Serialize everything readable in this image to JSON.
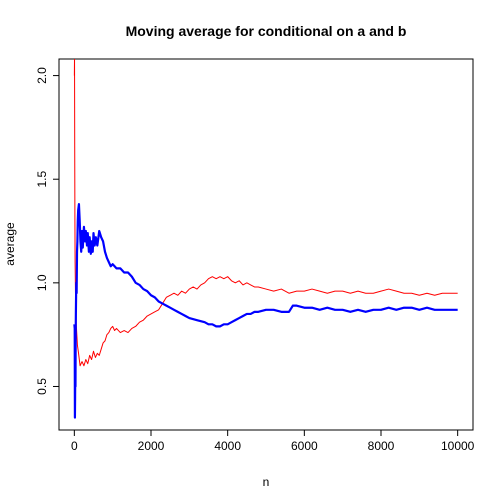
{
  "chart_data": {
    "type": "line",
    "title": "Moving average for conditional on a and b",
    "xlabel": "n",
    "ylabel": "average",
    "xlim": [
      -400,
      10400
    ],
    "ylim": [
      0.29,
      2.08
    ],
    "x_ticks": [
      0,
      2000,
      4000,
      6000,
      8000,
      10000
    ],
    "y_ticks": [
      0.5,
      1.0,
      1.5,
      2.0
    ],
    "x_tick_labels": [
      "0",
      "2000",
      "4000",
      "6000",
      "8000",
      "10000"
    ],
    "y_tick_labels": [
      "0.5",
      "1.0",
      "1.5",
      "2.0"
    ],
    "grid": false,
    "legend": "none",
    "series": [
      {
        "color": "#ff0000",
        "style": "line",
        "points": [
          [
            1,
            2.0
          ],
          [
            5,
            2.1
          ],
          [
            10,
            1.65
          ],
          [
            15,
            1.3
          ],
          [
            20,
            1.1
          ],
          [
            30,
            0.95
          ],
          [
            50,
            0.8
          ],
          [
            80,
            0.7
          ],
          [
            110,
            0.66
          ],
          [
            150,
            0.6
          ],
          [
            200,
            0.62
          ],
          [
            250,
            0.6
          ],
          [
            300,
            0.63
          ],
          [
            350,
            0.61
          ],
          [
            400,
            0.65
          ],
          [
            450,
            0.63
          ],
          [
            500,
            0.67
          ],
          [
            550,
            0.64
          ],
          [
            600,
            0.66
          ],
          [
            650,
            0.65
          ],
          [
            700,
            0.68
          ],
          [
            750,
            0.71
          ],
          [
            800,
            0.72
          ],
          [
            850,
            0.75
          ],
          [
            900,
            0.76
          ],
          [
            950,
            0.78
          ],
          [
            1000,
            0.79
          ],
          [
            1050,
            0.77
          ],
          [
            1100,
            0.78
          ],
          [
            1200,
            0.76
          ],
          [
            1300,
            0.77
          ],
          [
            1400,
            0.76
          ],
          [
            1500,
            0.78
          ],
          [
            1600,
            0.79
          ],
          [
            1700,
            0.81
          ],
          [
            1800,
            0.82
          ],
          [
            1900,
            0.84
          ],
          [
            2000,
            0.85
          ],
          [
            2100,
            0.86
          ],
          [
            2200,
            0.87
          ],
          [
            2300,
            0.9
          ],
          [
            2400,
            0.93
          ],
          [
            2500,
            0.94
          ],
          [
            2600,
            0.95
          ],
          [
            2700,
            0.94
          ],
          [
            2800,
            0.96
          ],
          [
            2900,
            0.95
          ],
          [
            3000,
            0.97
          ],
          [
            3100,
            0.98
          ],
          [
            3200,
            0.97
          ],
          [
            3300,
            0.99
          ],
          [
            3400,
            1.0
          ],
          [
            3500,
            1.02
          ],
          [
            3600,
            1.03
          ],
          [
            3700,
            1.02
          ],
          [
            3800,
            1.03
          ],
          [
            3900,
            1.02
          ],
          [
            4000,
            1.03
          ],
          [
            4100,
            1.01
          ],
          [
            4200,
            1.0
          ],
          [
            4300,
            1.01
          ],
          [
            4400,
            0.99
          ],
          [
            4500,
            1.0
          ],
          [
            4600,
            0.99
          ],
          [
            4700,
            0.98
          ],
          [
            4800,
            0.98
          ],
          [
            5000,
            0.97
          ],
          [
            5200,
            0.96
          ],
          [
            5400,
            0.97
          ],
          [
            5600,
            0.95
          ],
          [
            5800,
            0.96
          ],
          [
            6000,
            0.96
          ],
          [
            6200,
            0.97
          ],
          [
            6400,
            0.96
          ],
          [
            6600,
            0.95
          ],
          [
            6800,
            0.96
          ],
          [
            7000,
            0.96
          ],
          [
            7200,
            0.95
          ],
          [
            7400,
            0.96
          ],
          [
            7600,
            0.95
          ],
          [
            7800,
            0.95
          ],
          [
            8000,
            0.96
          ],
          [
            8200,
            0.97
          ],
          [
            8400,
            0.96
          ],
          [
            8600,
            0.95
          ],
          [
            8800,
            0.95
          ],
          [
            9000,
            0.94
          ],
          [
            9200,
            0.95
          ],
          [
            9400,
            0.94
          ],
          [
            9600,
            0.95
          ],
          [
            9800,
            0.95
          ],
          [
            10000,
            0.95
          ]
        ]
      },
      {
        "color": "#0000ff",
        "style": "thick-line",
        "points": [
          [
            1,
            0.8
          ],
          [
            10,
            0.78
          ],
          [
            15,
            0.35
          ],
          [
            20,
            0.45
          ],
          [
            25,
            0.6
          ],
          [
            30,
            0.5
          ],
          [
            35,
            0.75
          ],
          [
            40,
            0.85
          ],
          [
            50,
            1.0
          ],
          [
            60,
            0.95
          ],
          [
            70,
            1.15
          ],
          [
            80,
            1.2
          ],
          [
            90,
            1.3
          ],
          [
            100,
            1.35
          ],
          [
            120,
            1.38
          ],
          [
            140,
            1.3
          ],
          [
            160,
            1.2
          ],
          [
            180,
            1.15
          ],
          [
            200,
            1.25
          ],
          [
            220,
            1.17
          ],
          [
            250,
            1.27
          ],
          [
            280,
            1.2
          ],
          [
            300,
            1.25
          ],
          [
            330,
            1.18
          ],
          [
            350,
            1.24
          ],
          [
            380,
            1.15
          ],
          [
            400,
            1.22
          ],
          [
            430,
            1.14
          ],
          [
            450,
            1.2
          ],
          [
            480,
            1.15
          ],
          [
            500,
            1.24
          ],
          [
            530,
            1.18
          ],
          [
            560,
            1.22
          ],
          [
            600,
            1.18
          ],
          [
            650,
            1.25
          ],
          [
            700,
            1.22
          ],
          [
            750,
            1.2
          ],
          [
            800,
            1.15
          ],
          [
            850,
            1.12
          ],
          [
            900,
            1.1
          ],
          [
            950,
            1.08
          ],
          [
            1000,
            1.09
          ],
          [
            1050,
            1.08
          ],
          [
            1100,
            1.07
          ],
          [
            1200,
            1.07
          ],
          [
            1300,
            1.05
          ],
          [
            1400,
            1.05
          ],
          [
            1500,
            1.03
          ],
          [
            1600,
            1.0
          ],
          [
            1700,
            0.99
          ],
          [
            1800,
            0.97
          ],
          [
            1900,
            0.96
          ],
          [
            2000,
            0.94
          ],
          [
            2100,
            0.93
          ],
          [
            2200,
            0.91
          ],
          [
            2300,
            0.9
          ],
          [
            2400,
            0.89
          ],
          [
            2500,
            0.88
          ],
          [
            2600,
            0.87
          ],
          [
            2700,
            0.86
          ],
          [
            2800,
            0.85
          ],
          [
            2900,
            0.84
          ],
          [
            3000,
            0.83
          ],
          [
            3200,
            0.82
          ],
          [
            3400,
            0.81
          ],
          [
            3500,
            0.8
          ],
          [
            3600,
            0.8
          ],
          [
            3700,
            0.79
          ],
          [
            3800,
            0.79
          ],
          [
            3900,
            0.8
          ],
          [
            4000,
            0.8
          ],
          [
            4100,
            0.81
          ],
          [
            4200,
            0.82
          ],
          [
            4300,
            0.83
          ],
          [
            4400,
            0.84
          ],
          [
            4500,
            0.85
          ],
          [
            4600,
            0.85
          ],
          [
            4700,
            0.86
          ],
          [
            4800,
            0.86
          ],
          [
            5000,
            0.87
          ],
          [
            5200,
            0.87
          ],
          [
            5400,
            0.86
          ],
          [
            5600,
            0.86
          ],
          [
            5700,
            0.89
          ],
          [
            5800,
            0.89
          ],
          [
            6000,
            0.88
          ],
          [
            6200,
            0.88
          ],
          [
            6400,
            0.87
          ],
          [
            6600,
            0.88
          ],
          [
            6800,
            0.87
          ],
          [
            7000,
            0.87
          ],
          [
            7200,
            0.86
          ],
          [
            7400,
            0.87
          ],
          [
            7600,
            0.86
          ],
          [
            7800,
            0.87
          ],
          [
            8000,
            0.87
          ],
          [
            8200,
            0.88
          ],
          [
            8400,
            0.87
          ],
          [
            8600,
            0.88
          ],
          [
            8800,
            0.88
          ],
          [
            9000,
            0.87
          ],
          [
            9200,
            0.88
          ],
          [
            9400,
            0.87
          ],
          [
            9600,
            0.87
          ],
          [
            9800,
            0.87
          ],
          [
            10000,
            0.87
          ]
        ]
      }
    ]
  }
}
